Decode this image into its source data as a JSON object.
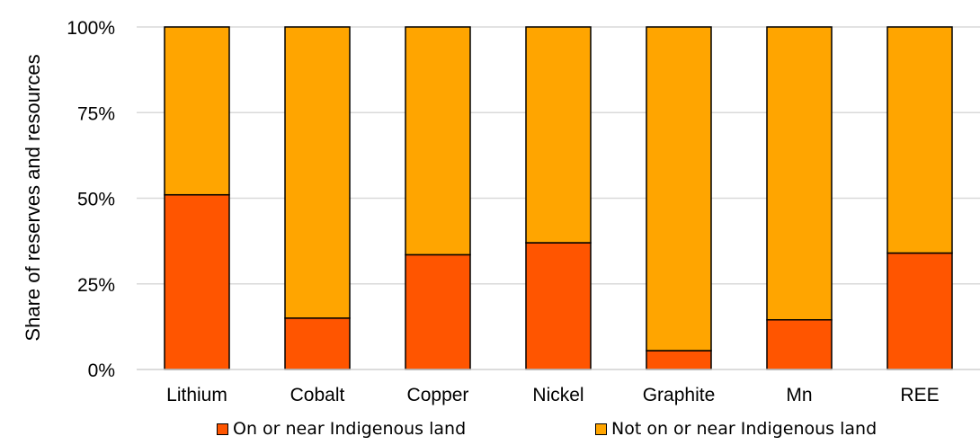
{
  "chart_data": {
    "type": "bar",
    "stacked": true,
    "categories": [
      "Lithium",
      "Cobalt",
      "Copper",
      "Nickel",
      "Graphite",
      "Mn",
      "REE"
    ],
    "series": [
      {
        "name": "On or near Indigenous land",
        "color": "#FF5500",
        "values": [
          51,
          15,
          33.5,
          37,
          5.5,
          14.5,
          34
        ]
      },
      {
        "name": "Not on or near Indigenous land",
        "color": "#FFA500",
        "values": [
          49,
          85,
          66.5,
          63,
          94.5,
          85.5,
          66
        ]
      }
    ],
    "ylabel": "Share of reserves and resources",
    "xlabel": "",
    "yticks": [
      "0%",
      "25%",
      "50%",
      "75%",
      "100%"
    ],
    "ylim": [
      0,
      100
    ],
    "grid": "horizontal",
    "legend_position": "bottom"
  }
}
